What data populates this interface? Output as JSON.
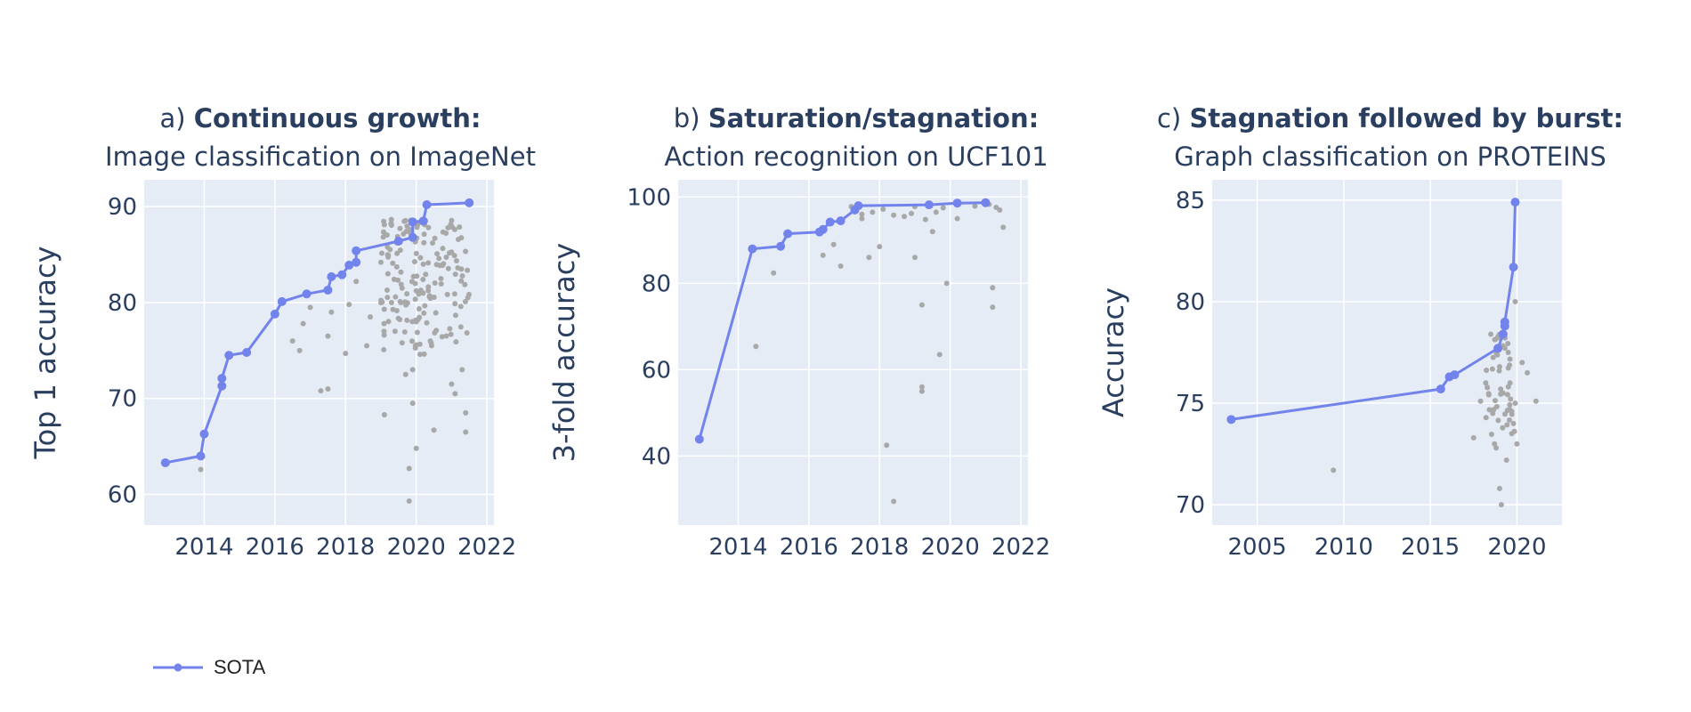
{
  "legend": {
    "sota_label": "SOTA"
  },
  "colors": {
    "sota": "#7283ec",
    "other": "#a8a8a8",
    "plot_bg": "#e5ecf6",
    "grid": "#ffffff",
    "text": "#2a3f5f"
  },
  "chart_data": [
    {
      "type": "scatter",
      "title_prefix": "a)",
      "title_bold": "Continuous growth:",
      "subtitle": "Image classification on ImageNet",
      "xlabel": "",
      "ylabel": "Top 1 accuracy",
      "xlim": [
        2012.3,
        2022.2
      ],
      "ylim": [
        56.8,
        92.8
      ],
      "xticks": [
        2014,
        2016,
        2018,
        2020,
        2022
      ],
      "yticks": [
        60,
        70,
        80,
        90
      ],
      "sota": [
        [
          2012.9,
          63.3
        ],
        [
          2013.9,
          64.0
        ],
        [
          2014.0,
          66.3
        ],
        [
          2014.5,
          71.3
        ],
        [
          2014.5,
          72.1
        ],
        [
          2014.7,
          74.5
        ],
        [
          2015.2,
          74.8
        ],
        [
          2016.0,
          78.8
        ],
        [
          2016.2,
          80.1
        ],
        [
          2016.9,
          80.9
        ],
        [
          2017.5,
          81.3
        ],
        [
          2017.6,
          82.7
        ],
        [
          2017.9,
          82.9
        ],
        [
          2018.1,
          83.9
        ],
        [
          2018.3,
          84.2
        ],
        [
          2018.3,
          85.4
        ],
        [
          2019.5,
          86.4
        ],
        [
          2019.9,
          86.8
        ],
        [
          2019.9,
          88.4
        ],
        [
          2020.2,
          88.5
        ],
        [
          2020.3,
          90.2
        ],
        [
          2021.5,
          90.4
        ]
      ],
      "others": [
        [
          2013.9,
          62.6
        ],
        [
          2016.5,
          76.0
        ],
        [
          2016.7,
          75.0
        ],
        [
          2016.8,
          77.8
        ],
        [
          2017.0,
          79.5
        ],
        [
          2017.3,
          70.8
        ],
        [
          2017.5,
          71.0
        ],
        [
          2017.5,
          76.5
        ],
        [
          2017.6,
          79.0
        ],
        [
          2018.0,
          74.7
        ],
        [
          2018.1,
          79.8
        ],
        [
          2018.3,
          82.2
        ],
        [
          2018.6,
          75.5
        ],
        [
          2018.7,
          78.5
        ],
        [
          2019.0,
          84.2
        ],
        [
          2019.1,
          68.3
        ],
        [
          2019.2,
          83.0
        ],
        [
          2019.3,
          80.0
        ],
        [
          2019.4,
          77.0
        ],
        [
          2019.6,
          81.5
        ],
        [
          2019.6,
          75.8
        ],
        [
          2019.7,
          72.5
        ],
        [
          2019.8,
          62.7
        ],
        [
          2019.8,
          59.3
        ],
        [
          2019.9,
          69.5
        ],
        [
          2019.9,
          73.0
        ],
        [
          2020.0,
          64.8
        ],
        [
          2020.0,
          78.0
        ],
        [
          2020.2,
          84.0
        ],
        [
          2020.4,
          76.0
        ],
        [
          2020.5,
          66.7
        ],
        [
          2020.7,
          82.5
        ],
        [
          2020.9,
          87.8
        ],
        [
          2021.0,
          71.5
        ],
        [
          2021.1,
          70.5
        ],
        [
          2021.3,
          73.0
        ],
        [
          2021.4,
          66.5
        ],
        [
          2021.4,
          68.5
        ]
      ],
      "cluster": {
        "x": [
          2019.0,
          2021.5
        ],
        "y": [
          74.5,
          88.8
        ],
        "count": 160
      }
    },
    {
      "type": "scatter",
      "title_prefix": "b)",
      "title_bold": "Saturation/stagnation:",
      "subtitle": "Action recognition on UCF101",
      "xlabel": "",
      "ylabel": "3-fold accuracy",
      "xlim": [
        2012.3,
        2022.2
      ],
      "ylim": [
        24,
        104
      ],
      "xticks": [
        2014,
        2016,
        2018,
        2020,
        2022
      ],
      "yticks": [
        40,
        60,
        80,
        100
      ],
      "sota": [
        [
          2012.9,
          43.9
        ],
        [
          2014.4,
          88.0
        ],
        [
          2015.2,
          88.6
        ],
        [
          2015.4,
          91.5
        ],
        [
          2016.3,
          91.9
        ],
        [
          2016.4,
          92.5
        ],
        [
          2016.6,
          94.2
        ],
        [
          2016.9,
          94.5
        ],
        [
          2017.3,
          97.0
        ],
        [
          2017.4,
          98.0
        ],
        [
          2019.4,
          98.2
        ],
        [
          2020.2,
          98.6
        ],
        [
          2021.0,
          98.7
        ]
      ],
      "others": [
        [
          2014.5,
          65.4
        ],
        [
          2015.0,
          82.4
        ],
        [
          2016.4,
          86.5
        ],
        [
          2016.7,
          89.0
        ],
        [
          2016.9,
          84.0
        ],
        [
          2017.5,
          95.0
        ],
        [
          2017.7,
          86.0
        ],
        [
          2018.0,
          88.5
        ],
        [
          2018.2,
          42.5
        ],
        [
          2018.4,
          29.5
        ],
        [
          2018.7,
          95.5
        ],
        [
          2019.0,
          86.0
        ],
        [
          2019.2,
          75.0
        ],
        [
          2019.2,
          56.0
        ],
        [
          2019.2,
          55.0
        ],
        [
          2019.5,
          92.0
        ],
        [
          2019.7,
          63.5
        ],
        [
          2019.9,
          80.0
        ],
        [
          2020.2,
          95.0
        ],
        [
          2021.2,
          79.0
        ],
        [
          2021.2,
          74.5
        ],
        [
          2021.5,
          93.0
        ],
        [
          2021.4,
          97.0
        ],
        [
          2017.8,
          96.5
        ],
        [
          2018.1,
          97.2
        ],
        [
          2018.4,
          95.8
        ],
        [
          2019.0,
          97.8
        ],
        [
          2019.3,
          94.8
        ],
        [
          2019.6,
          96.5
        ],
        [
          2019.8,
          97.5
        ],
        [
          2020.7,
          97.9
        ],
        [
          2021.1,
          98.3
        ],
        [
          2021.3,
          97.6
        ],
        [
          2017.5,
          96.0
        ],
        [
          2017.2,
          97.8
        ],
        [
          2018.9,
          96.2
        ]
      ],
      "cluster": null
    },
    {
      "type": "scatter",
      "title_prefix": "c)",
      "title_bold": "Stagnation followed by burst:",
      "subtitle": "Graph classification on PROTEINS",
      "xlabel": "",
      "ylabel": "Accuracy",
      "xlim": [
        2002.4,
        2022.6
      ],
      "ylim": [
        69,
        86
      ],
      "xticks": [
        2005,
        2010,
        2015,
        2020
      ],
      "yticks": [
        70,
        75,
        80,
        85
      ],
      "sota": [
        [
          2003.5,
          74.2
        ],
        [
          2015.6,
          75.7
        ],
        [
          2016.1,
          76.3
        ],
        [
          2016.4,
          76.4
        ],
        [
          2018.9,
          77.7
        ],
        [
          2019.2,
          78.4
        ],
        [
          2019.3,
          78.8
        ],
        [
          2019.3,
          79.0
        ],
        [
          2019.8,
          81.7
        ],
        [
          2019.9,
          84.9
        ]
      ],
      "others": [
        [
          2009.4,
          71.7
        ],
        [
          2017.5,
          73.3
        ],
        [
          2017.9,
          75.1
        ],
        [
          2018.2,
          76.0
        ],
        [
          2018.6,
          74.5
        ],
        [
          2018.7,
          73.0
        ],
        [
          2018.8,
          72.8
        ],
        [
          2019.0,
          70.8
        ],
        [
          2019.1,
          70.0
        ],
        [
          2019.4,
          72.2
        ],
        [
          2019.7,
          73.5
        ],
        [
          2019.8,
          74.0
        ],
        [
          2019.9,
          80.0
        ],
        [
          2020.3,
          77.0
        ],
        [
          2020.6,
          76.5
        ],
        [
          2021.1,
          75.1
        ],
        [
          2019.5,
          77.5
        ],
        [
          2019.6,
          76.0
        ],
        [
          2019.2,
          75.5
        ],
        [
          2019.0,
          76.8
        ],
        [
          2019.9,
          75.0
        ],
        [
          2020.0,
          73.0
        ]
      ],
      "cluster": {
        "x": [
          2018.2,
          2019.9
        ],
        "y": [
          73.2,
          78.6
        ],
        "count": 45
      }
    }
  ]
}
